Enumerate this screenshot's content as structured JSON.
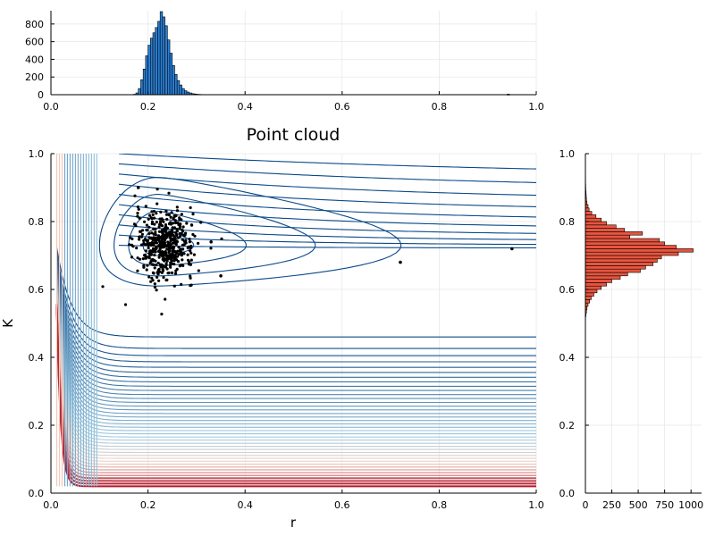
{
  "colors": {
    "top_hist_fill": "#2a7fd5",
    "right_hist_fill": "#e8553f",
    "contour_dark": "#0b4a8a",
    "contour_light": "#9ecae1",
    "contour_red": "#b2182b",
    "points": "#000000",
    "grid": "#e6e6e6"
  },
  "chart_data": [
    {
      "type": "bar",
      "role": "top-marginal-histogram",
      "title": "",
      "xlim": [
        0,
        1
      ],
      "ylim": [
        0,
        950
      ],
      "xticks": [
        "0.0",
        "0.2",
        "0.4",
        "0.6",
        "0.8",
        "1.0"
      ],
      "yticks": [
        "0",
        "200",
        "400",
        "600",
        "800"
      ],
      "bin_width": 0.005,
      "bins_start": [
        0.17,
        0.175,
        0.18,
        0.185,
        0.19,
        0.195,
        0.2,
        0.205,
        0.21,
        0.215,
        0.22,
        0.225,
        0.23,
        0.235,
        0.24,
        0.245,
        0.25,
        0.255,
        0.26,
        0.265,
        0.27,
        0.275,
        0.28,
        0.285,
        0.29,
        0.295,
        0.3,
        0.305,
        0.31
      ],
      "counts": [
        5,
        20,
        70,
        170,
        290,
        440,
        560,
        640,
        700,
        760,
        830,
        940,
        880,
        780,
        620,
        470,
        330,
        230,
        160,
        110,
        70,
        45,
        30,
        20,
        12,
        8,
        5,
        3,
        2
      ],
      "tail_bin": {
        "start": 0.94,
        "count": 1
      }
    },
    {
      "type": "scatter",
      "role": "main-contour-and-point-cloud",
      "title": "Point cloud",
      "xlabel": "r",
      "ylabel": "K",
      "xlim": [
        0,
        1
      ],
      "ylim": [
        0,
        1
      ],
      "xticks": [
        "0.0",
        "0.2",
        "0.4",
        "0.6",
        "0.8",
        "1.0"
      ],
      "yticks": [
        "0.0",
        "0.2",
        "0.4",
        "0.6",
        "0.8",
        "1.0"
      ],
      "grid": true,
      "cloud_center": [
        0.235,
        0.73
      ],
      "cloud_spread": [
        0.03,
        0.05
      ],
      "cloud_count": 500,
      "outliers": [
        [
          0.35,
          0.64
        ],
        [
          0.72,
          0.68
        ],
        [
          0.95,
          0.72
        ],
        [
          0.33,
          0.74
        ],
        [
          0.18,
          0.9
        ]
      ],
      "contour_minimum": [
        0.22,
        0.73
      ],
      "contour_levels": 40
    },
    {
      "type": "bar",
      "role": "right-marginal-histogram",
      "orientation": "horizontal",
      "ylim": [
        0,
        1
      ],
      "xlim": [
        0,
        1100
      ],
      "xticks": [
        "0",
        "250",
        "500",
        "750",
        "1000"
      ],
      "yticks": [
        "0.0",
        "0.2",
        "0.4",
        "0.6",
        "0.8",
        "1.0"
      ],
      "bin_height": 0.01,
      "bins_start": [
        0.51,
        0.52,
        0.53,
        0.54,
        0.55,
        0.56,
        0.57,
        0.58,
        0.59,
        0.6,
        0.61,
        0.62,
        0.63,
        0.64,
        0.65,
        0.66,
        0.67,
        0.68,
        0.69,
        0.7,
        0.71,
        0.72,
        0.73,
        0.74,
        0.75,
        0.76,
        0.77,
        0.78,
        0.79,
        0.8,
        0.81,
        0.82,
        0.83,
        0.84,
        0.85,
        0.86,
        0.87,
        0.88,
        0.89,
        0.9,
        0.91,
        0.92,
        0.93,
        0.94
      ],
      "counts": [
        2,
        5,
        10,
        15,
        25,
        40,
        55,
        80,
        110,
        150,
        200,
        250,
        330,
        400,
        520,
        570,
        640,
        680,
        720,
        880,
        1020,
        860,
        750,
        700,
        420,
        540,
        370,
        290,
        200,
        150,
        100,
        60,
        35,
        25,
        15,
        10,
        8,
        6,
        4,
        3,
        2,
        2,
        1,
        1
      ]
    }
  ]
}
